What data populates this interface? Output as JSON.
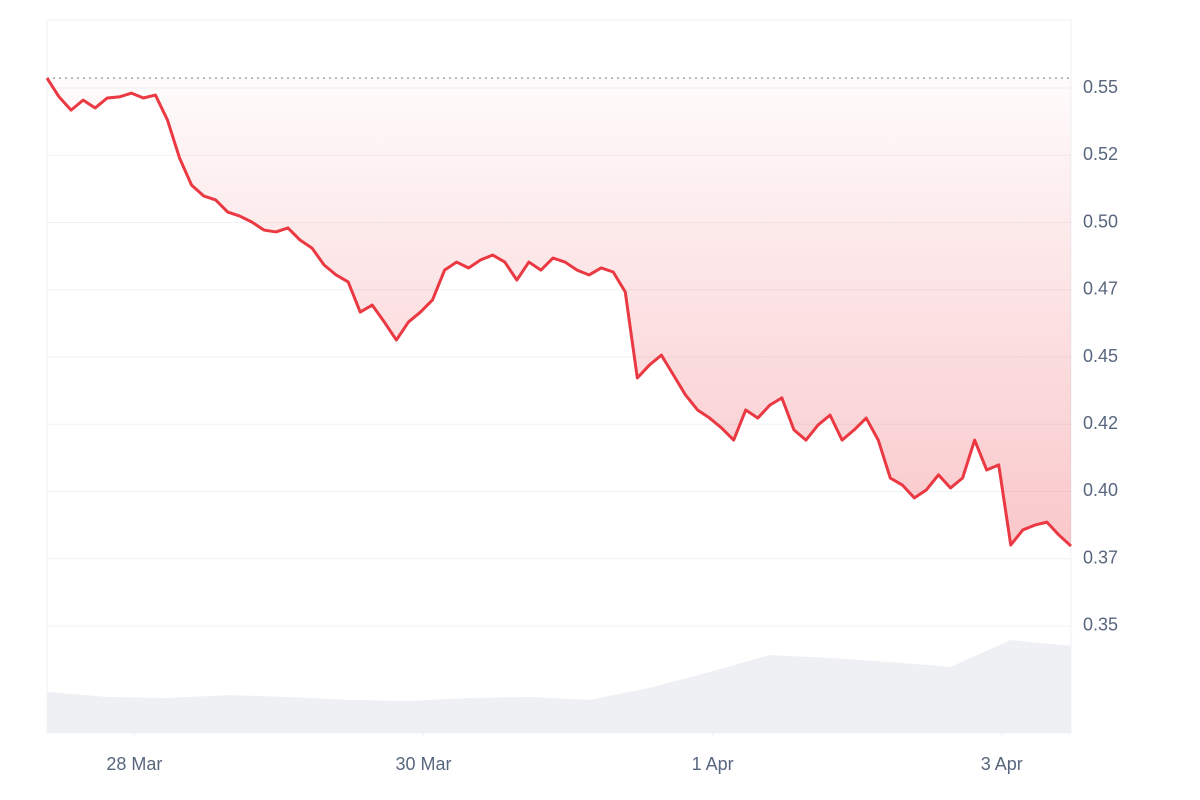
{
  "chart_data": {
    "type": "line",
    "x": [
      0,
      2,
      4,
      6,
      8,
      10,
      12,
      14,
      16,
      18,
      20,
      22,
      24,
      26,
      28,
      30,
      32,
      34,
      36,
      38,
      40,
      42,
      44,
      46,
      48,
      50,
      52,
      54,
      56,
      58,
      60,
      62,
      64,
      66,
      68,
      70,
      72,
      74,
      76,
      78,
      80,
      82,
      84,
      86,
      88,
      90,
      92,
      94,
      96,
      98,
      100,
      102,
      104,
      106,
      108,
      110,
      112,
      114,
      116,
      118,
      120,
      122,
      124,
      126,
      128,
      130,
      132,
      134,
      136,
      138,
      140,
      142,
      144,
      146,
      148,
      150,
      152,
      154,
      156,
      158,
      160,
      162,
      164,
      166,
      168,
      170
    ],
    "series": [
      {
        "color": "#ea3943",
        "values": [
          0.5537,
          0.5467,
          0.5418,
          0.5455,
          0.5426,
          0.5463,
          0.5467,
          0.5481,
          0.5463,
          0.5474,
          0.5381,
          0.524,
          0.5139,
          0.5099,
          0.5084,
          0.5039,
          0.5024,
          0.5002,
          0.4972,
          0.4965,
          0.498,
          0.4935,
          0.4905,
          0.4842,
          0.4805,
          0.4779,
          0.4667,
          0.4693,
          0.463,
          0.4563,
          0.463,
          0.4667,
          0.4712,
          0.4823,
          0.4853,
          0.4831,
          0.4861,
          0.4879,
          0.4853,
          0.4786,
          0.4853,
          0.4823,
          0.4868,
          0.4853,
          0.4823,
          0.4805,
          0.4831,
          0.4816,
          0.4742,
          0.4422,
          0.447,
          0.4507,
          0.4433,
          0.4359,
          0.4303,
          0.4273,
          0.4236,
          0.4191,
          0.4303,
          0.4273,
          0.4321,
          0.4348,
          0.4229,
          0.4191,
          0.4247,
          0.4284,
          0.4191,
          0.4229,
          0.4273,
          0.4191,
          0.405,
          0.4024,
          0.3976,
          0.4006,
          0.4062,
          0.4013,
          0.405,
          0.4191,
          0.408,
          0.4099,
          0.3801,
          0.3857,
          0.3875,
          0.3886,
          0.3838,
          0.3797
        ]
      }
    ],
    "volume": {
      "color": "#eef0f3",
      "x": [
        0,
        10,
        20,
        30,
        40,
        50,
        60,
        70,
        80,
        90,
        100,
        110,
        120,
        130,
        140,
        150,
        160,
        170
      ],
      "values": [
        0.3255,
        0.3236,
        0.3232,
        0.3243,
        0.3236,
        0.3225,
        0.3221,
        0.3232,
        0.3236,
        0.3225,
        0.327,
        0.3329,
        0.3392,
        0.3381,
        0.3366,
        0.3348,
        0.3448,
        0.3426
      ]
    },
    "xlim": [
      0,
      170
    ],
    "xticks": [
      {
        "value": 14.5,
        "label": "28 Mar"
      },
      {
        "value": 62.5,
        "label": "30 Mar"
      },
      {
        "value": 110.5,
        "label": "1 Apr"
      },
      {
        "value": 158.5,
        "label": "3 Apr"
      }
    ],
    "ylim": [
      0.3102,
      0.5753
    ],
    "yticks": [
      {
        "value": 0.55,
        "label": "0.55"
      },
      {
        "value": 0.525,
        "label": "0.52"
      },
      {
        "value": 0.5,
        "label": "0.50"
      },
      {
        "value": 0.475,
        "label": "0.47"
      },
      {
        "value": 0.45,
        "label": "0.45"
      },
      {
        "value": 0.425,
        "label": "0.42"
      },
      {
        "value": 0.4,
        "label": "0.40"
      },
      {
        "value": 0.375,
        "label": "0.37"
      },
      {
        "value": 0.35,
        "label": "0.35"
      }
    ],
    "grid": true
  }
}
